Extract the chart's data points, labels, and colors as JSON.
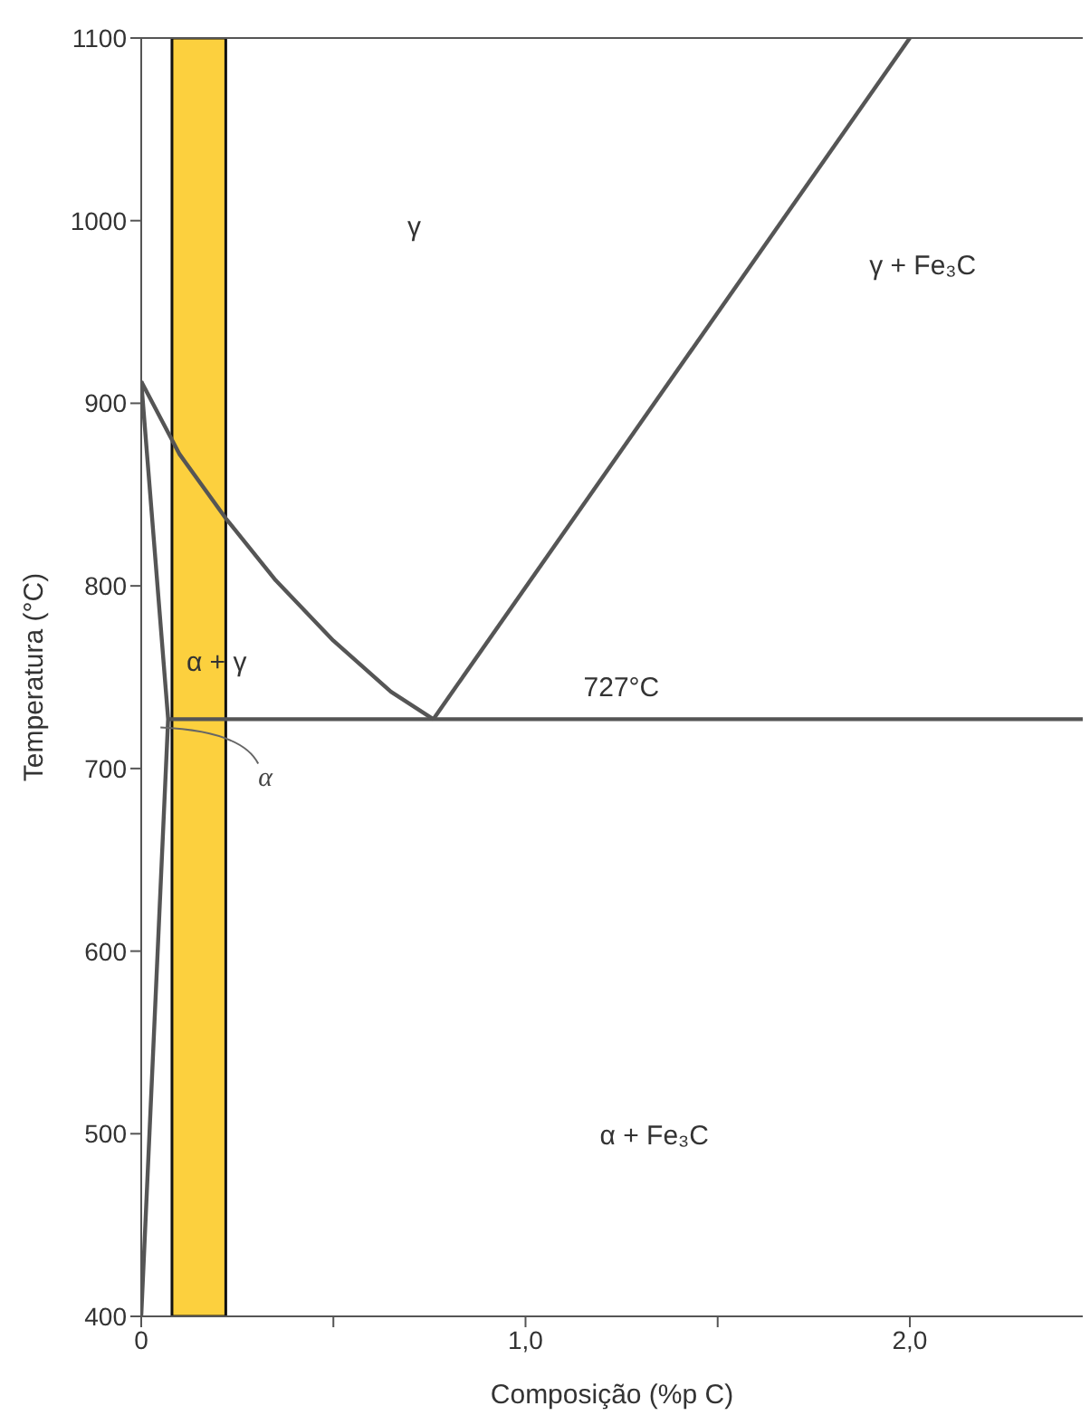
{
  "chart_data": {
    "type": "line",
    "xlabel": "Composição (%p C)",
    "ylabel": "Temperatura (°C)",
    "xlim": [
      0,
      2.45
    ],
    "xticks": [
      0,
      {
        "value": 0.5,
        "label": null
      },
      {
        "value": 1,
        "label": "1,0"
      },
      {
        "value": 1.5,
        "label": null
      },
      {
        "value": 2,
        "label": "2,0"
      }
    ],
    "ylim": [
      400,
      1100
    ],
    "yticks": [
      400,
      500,
      600,
      700,
      800,
      900,
      1000,
      1100
    ],
    "marker": "none",
    "line_style": "solid",
    "series": [
      {
        "color": "#555555",
        "x": [
          0,
          0.1,
          0.22,
          0.35,
          0.5,
          0.65,
          0.76
        ],
        "values": [
          912,
          872,
          837,
          803,
          770,
          742,
          727
        ]
      },
      {
        "color": "#555555",
        "x": [
          0.76,
          2.0
        ],
        "values": [
          727,
          1100
        ]
      },
      {
        "color": "#555555",
        "x": [
          0.07,
          2.45
        ],
        "values": [
          727,
          727
        ]
      },
      {
        "color": "#555555",
        "x": [
          0,
          0.07,
          0
        ],
        "values": [
          912,
          727,
          400
        ]
      }
    ],
    "bands": [
      {
        "axis": "x",
        "from": 0.08,
        "to": 0.22,
        "color": "#fcd03e"
      }
    ],
    "annotations": [
      "γ",
      "γ + Fe₃C",
      "α + γ",
      {
        "text": "α",
        "x": 0.05,
        "y": 722
      },
      "727°C",
      "α + Fe₃C"
    ]
  }
}
